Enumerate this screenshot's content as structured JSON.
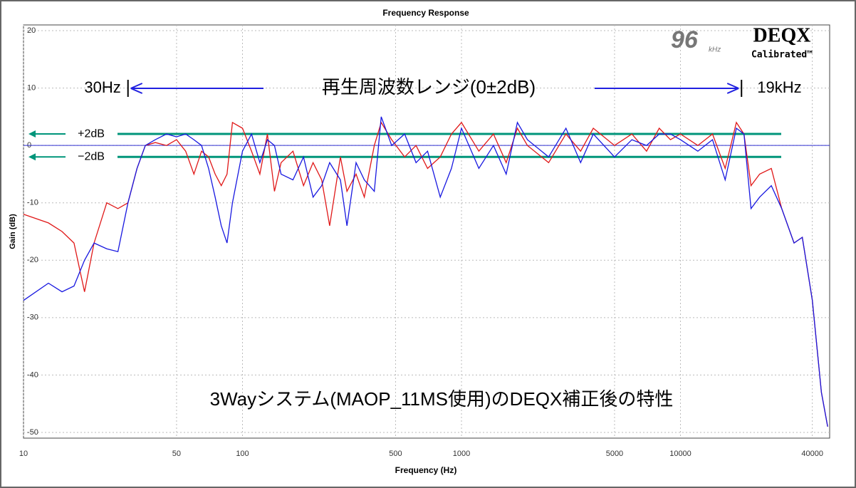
{
  "chart_data": {
    "type": "line",
    "title": "Frequency Response",
    "x_label": "Frequency (Hz)",
    "y_label": "Gain (dB)",
    "log_x": true,
    "grid": true,
    "xlim": [
      10,
      48000
    ],
    "ylim": [
      -51,
      21
    ],
    "xticks": [
      10,
      50,
      100,
      500,
      1000,
      5000,
      10000,
      40000
    ],
    "yticks": [
      20,
      10,
      0,
      -10,
      -20,
      -30,
      -40,
      -50
    ],
    "x": [
      10,
      13,
      15,
      17,
      19,
      21,
      24,
      27,
      30,
      33,
      36,
      40,
      45,
      50,
      55,
      60,
      65,
      70,
      75,
      80,
      85,
      90,
      100,
      110,
      120,
      130,
      140,
      150,
      170,
      190,
      210,
      230,
      250,
      280,
      300,
      330,
      360,
      400,
      430,
      480,
      550,
      620,
      700,
      800,
      900,
      1000,
      1200,
      1400,
      1600,
      1800,
      2000,
      2500,
      3000,
      3500,
      4000,
      5000,
      6000,
      7000,
      8000,
      9000,
      10000,
      12000,
      14000,
      16000,
      18000,
      19500,
      21000,
      23000,
      26000,
      29000,
      33000,
      36000,
      40000,
      44000,
      47000
    ],
    "series": [
      {
        "name": "red",
        "color": "#e01818",
        "values": [
          -12,
          -13.5,
          -15,
          -17,
          -25.5,
          -17,
          -10,
          -11,
          -10,
          -4,
          0,
          0.5,
          0,
          1,
          -1,
          -5,
          -1,
          -2,
          -5,
          -7,
          -5,
          4,
          3,
          -1,
          -5,
          2,
          -8,
          -3,
          -1,
          -7,
          -3,
          -6,
          -14,
          -2,
          -8,
          -5,
          -9,
          0,
          4,
          1,
          -2,
          0,
          -4,
          -2,
          2,
          4,
          -1,
          2,
          -3,
          3,
          0,
          -3,
          2,
          -1,
          3,
          0,
          2,
          -1,
          3,
          1,
          2,
          0,
          2,
          -4,
          4,
          2,
          -7,
          -5,
          -4,
          -11,
          -17,
          -16,
          -27,
          -43,
          -49
        ]
      },
      {
        "name": "blue",
        "color": "#1818e0",
        "values": [
          -27,
          -24,
          -25.5,
          -24.5,
          -20,
          -17,
          -18,
          -18.5,
          -10,
          -4,
          0,
          1,
          2,
          1.5,
          2,
          1,
          0,
          -4,
          -9,
          -14,
          -17,
          -10,
          -1,
          2,
          -3,
          1,
          0,
          -5,
          -6,
          -2,
          -9,
          -7,
          -3,
          -6,
          -14,
          -3,
          -6,
          -8,
          5,
          0,
          2,
          -3,
          -1,
          -9,
          -4,
          3,
          -4,
          0,
          -5,
          4,
          1,
          -2,
          3,
          -3,
          2,
          -2,
          1,
          0,
          2,
          2,
          1,
          -1,
          1,
          -6,
          3,
          2,
          -11,
          -9,
          -7,
          -11,
          -17,
          -16,
          -27,
          -43,
          -49
        ]
      }
    ],
    "reference_line": 0,
    "bands": [
      {
        "value": 2,
        "label": "+2dB"
      },
      {
        "value": -2,
        "label": "−2dB"
      }
    ],
    "range_start": {
      "value": 30,
      "label": "30Hz"
    },
    "range_end": {
      "value": 19000,
      "label": "19kHz"
    },
    "range_label": "再生周波数レンジ(0±2dB)",
    "annotation": "3Wayシステム(MAOP_11MS使用)のDEQX補正後の特性",
    "logo": {
      "rate": "96",
      "unit": "kHz",
      "brand": "DEQX",
      "sub": "Calibrated™"
    }
  }
}
